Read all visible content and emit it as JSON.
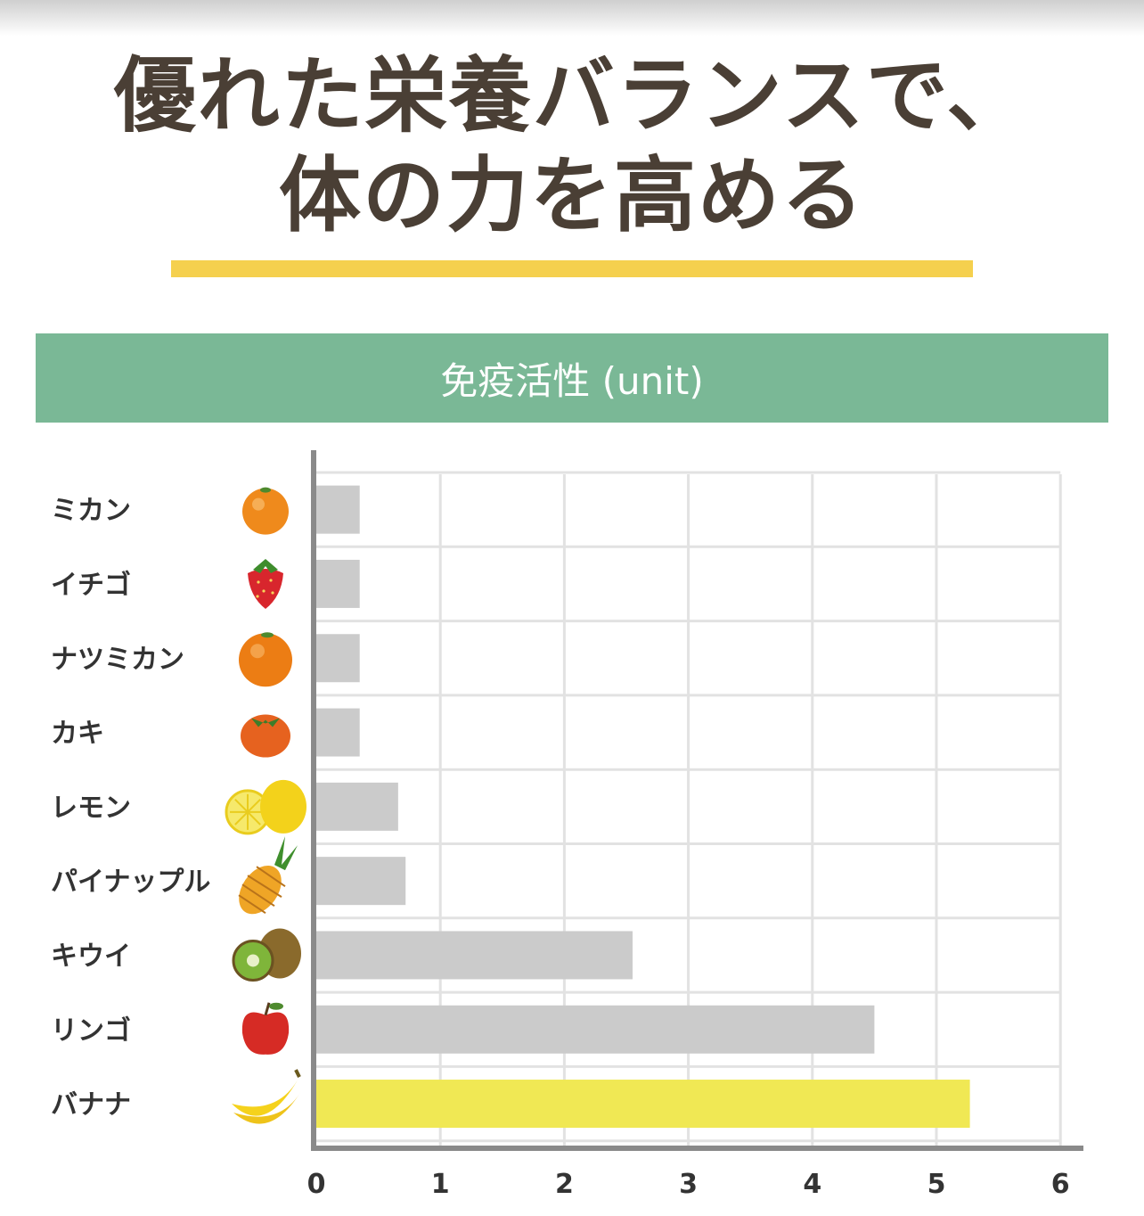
{
  "headline": {
    "line1": "優れた栄養バランスで、",
    "line2": "体の力を高める"
  },
  "colors": {
    "headline_text": "#4a3f35",
    "underline": "#f5d04e",
    "banner": "#7ab896",
    "bar_default": "#cbcbcb",
    "bar_highlight": "#f0e854",
    "grid": "#e2e2e2",
    "axis": "#8a8a8a"
  },
  "chart_data": {
    "type": "bar",
    "orientation": "horizontal",
    "title": "免疫活性 (unit)",
    "categories": [
      "ミカン",
      "イチゴ",
      "ナツミカン",
      "カキ",
      "レモン",
      "パイナップル",
      "キウイ",
      "リンゴ",
      "バナナ"
    ],
    "icons": [
      "orange-icon",
      "strawberry-icon",
      "summer-orange-icon",
      "persimmon-icon",
      "lemon-icon",
      "pineapple-icon",
      "kiwi-icon",
      "apple-icon",
      "banana-icon"
    ],
    "values": [
      0.35,
      0.35,
      0.35,
      0.35,
      0.66,
      0.72,
      2.55,
      4.5,
      5.27
    ],
    "highlight": "バナナ",
    "xlim": [
      0,
      6
    ],
    "xticks": [
      "0",
      "1",
      "2",
      "3",
      "4",
      "5",
      "6"
    ],
    "grid": true,
    "legend": "none"
  }
}
